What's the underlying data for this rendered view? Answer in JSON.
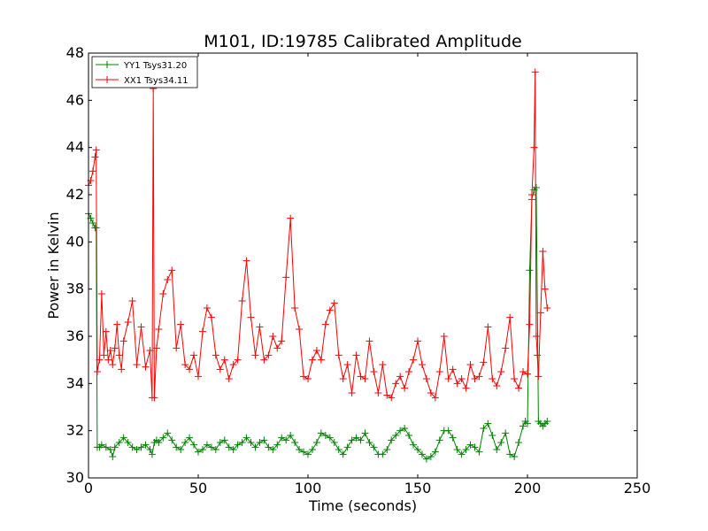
{
  "chart_data": {
    "type": "line",
    "title": "M101, ID:19785 Calibrated Amplitude",
    "xlabel": "Time (seconds)",
    "ylabel": "Power in Kelvin",
    "xlim": [
      0,
      250
    ],
    "ylim": [
      30,
      48
    ],
    "xticks": [
      "0",
      "50",
      "100",
      "150",
      "200",
      "250"
    ],
    "yticks": [
      "30",
      "32",
      "34",
      "36",
      "38",
      "40",
      "42",
      "44",
      "46",
      "48"
    ],
    "grid": false,
    "legend_position": "top-left",
    "marker": "plus",
    "series": [
      {
        "name": "YY1 Tsys31.20",
        "color": "#008000",
        "x": [
          0,
          1,
          2,
          3,
          3.5,
          4,
          5,
          6,
          8,
          10,
          11,
          12,
          14,
          16,
          18,
          20,
          22,
          24,
          26,
          28,
          29,
          30,
          31,
          32,
          34,
          36,
          38,
          40,
          42,
          44,
          46,
          48,
          50,
          52,
          54,
          56,
          58,
          60,
          62,
          64,
          66,
          68,
          70,
          72,
          74,
          76,
          78,
          80,
          82,
          84,
          86,
          88,
          90,
          92,
          94,
          96,
          98,
          100,
          102,
          104,
          106,
          108,
          110,
          112,
          114,
          116,
          118,
          120,
          122,
          124,
          126,
          128,
          130,
          132,
          134,
          136,
          138,
          140,
          142,
          144,
          146,
          148,
          150,
          152,
          154,
          156,
          158,
          160,
          162,
          164,
          166,
          168,
          170,
          172,
          174,
          176,
          178,
          180,
          182,
          184,
          186,
          188,
          190,
          192,
          194,
          196,
          198,
          199,
          200,
          201,
          202,
          203,
          204,
          205,
          206,
          207,
          208,
          209
        ],
        "values": [
          41.2,
          41.0,
          40.8,
          40.6,
          40.6,
          31.3,
          31.3,
          31.4,
          31.3,
          31.2,
          30.9,
          31.3,
          31.5,
          31.7,
          31.5,
          31.3,
          31.2,
          31.3,
          31.4,
          31.2,
          31.0,
          31.5,
          31.6,
          31.5,
          31.7,
          31.9,
          31.6,
          31.3,
          31.2,
          31.5,
          31.7,
          31.4,
          31.1,
          31.2,
          31.4,
          31.3,
          31.2,
          31.5,
          31.6,
          31.3,
          31.2,
          31.4,
          31.5,
          31.7,
          31.5,
          31.3,
          31.5,
          31.6,
          31.3,
          31.2,
          31.4,
          31.7,
          31.6,
          31.8,
          31.5,
          31.2,
          31.1,
          31.0,
          31.2,
          31.5,
          31.9,
          31.8,
          31.7,
          31.5,
          31.2,
          31.0,
          31.3,
          31.6,
          31.7,
          31.6,
          31.9,
          31.5,
          31.3,
          31.0,
          31.0,
          31.2,
          31.6,
          31.8,
          32.0,
          32.1,
          31.8,
          31.4,
          31.2,
          31.0,
          30.8,
          30.9,
          31.1,
          31.6,
          32.0,
          32.0,
          31.7,
          31.2,
          31.0,
          31.2,
          31.4,
          31.3,
          31.1,
          32.1,
          32.3,
          31.8,
          31.2,
          31.5,
          31.9,
          31.0,
          30.9,
          31.5,
          32.2,
          32.4,
          32.3,
          38.8,
          41.8,
          42.2,
          42.3,
          32.4,
          32.3,
          32.2,
          32.3,
          32.4
        ]
      },
      {
        "name": "XX1 Tsys34.11",
        "color": "#ff0000",
        "x": [
          0,
          1,
          2,
          3,
          3.5,
          4,
          5,
          6,
          7,
          8,
          9,
          10,
          11,
          12,
          13,
          14,
          15,
          16,
          18,
          20,
          22,
          24,
          26,
          28,
          29,
          29.5,
          30,
          31,
          32,
          34,
          36,
          38,
          40,
          42,
          44,
          46,
          48,
          50,
          52,
          54,
          56,
          58,
          60,
          62,
          64,
          66,
          68,
          70,
          72,
          74,
          76,
          78,
          80,
          82,
          84,
          86,
          88,
          90,
          92,
          94,
          96,
          98,
          100,
          102,
          104,
          106,
          108,
          110,
          112,
          114,
          116,
          118,
          120,
          122,
          124,
          126,
          128,
          130,
          132,
          134,
          136,
          138,
          140,
          142,
          144,
          146,
          148,
          150,
          152,
          154,
          156,
          158,
          160,
          162,
          164,
          166,
          168,
          170,
          172,
          174,
          176,
          178,
          180,
          182,
          184,
          186,
          188,
          190,
          192,
          194,
          196,
          198,
          200,
          201,
          202,
          203,
          203.5,
          204,
          204.5,
          205,
          206,
          207,
          208,
          209
        ],
        "values": [
          42.4,
          42.6,
          43.0,
          43.6,
          43.9,
          34.5,
          35.0,
          37.8,
          35.2,
          36.2,
          35.0,
          35.4,
          34.8,
          35.5,
          36.5,
          35.2,
          34.6,
          35.8,
          36.6,
          37.5,
          34.8,
          36.4,
          34.7,
          35.4,
          33.4,
          46.5,
          33.4,
          35.5,
          36.3,
          37.8,
          38.4,
          38.8,
          35.5,
          36.5,
          34.8,
          34.6,
          35.2,
          34.3,
          36.2,
          37.2,
          36.8,
          35.2,
          34.6,
          35.0,
          34.2,
          34.8,
          35.0,
          37.5,
          39.2,
          36.8,
          35.2,
          36.4,
          35.0,
          35.2,
          36.0,
          35.5,
          35.8,
          38.5,
          41.0,
          37.2,
          36.3,
          34.3,
          34.2,
          35.0,
          35.4,
          35.0,
          36.5,
          37.1,
          37.4,
          35.2,
          34.2,
          34.8,
          33.6,
          35.2,
          34.3,
          34.2,
          35.8,
          34.5,
          33.6,
          34.8,
          33.5,
          33.4,
          34.0,
          34.3,
          33.8,
          34.5,
          35.0,
          35.8,
          34.8,
          34.2,
          33.6,
          33.4,
          34.5,
          36.0,
          34.2,
          34.6,
          34.0,
          34.2,
          33.8,
          34.8,
          34.2,
          34.3,
          34.9,
          36.4,
          34.2,
          33.9,
          34.5,
          35.5,
          36.8,
          34.2,
          33.8,
          34.5,
          34.4,
          36.5,
          42.0,
          44.0,
          47.2,
          36.0,
          35.2,
          34.3,
          37.0,
          39.6,
          38.0,
          37.2
        ]
      }
    ]
  }
}
